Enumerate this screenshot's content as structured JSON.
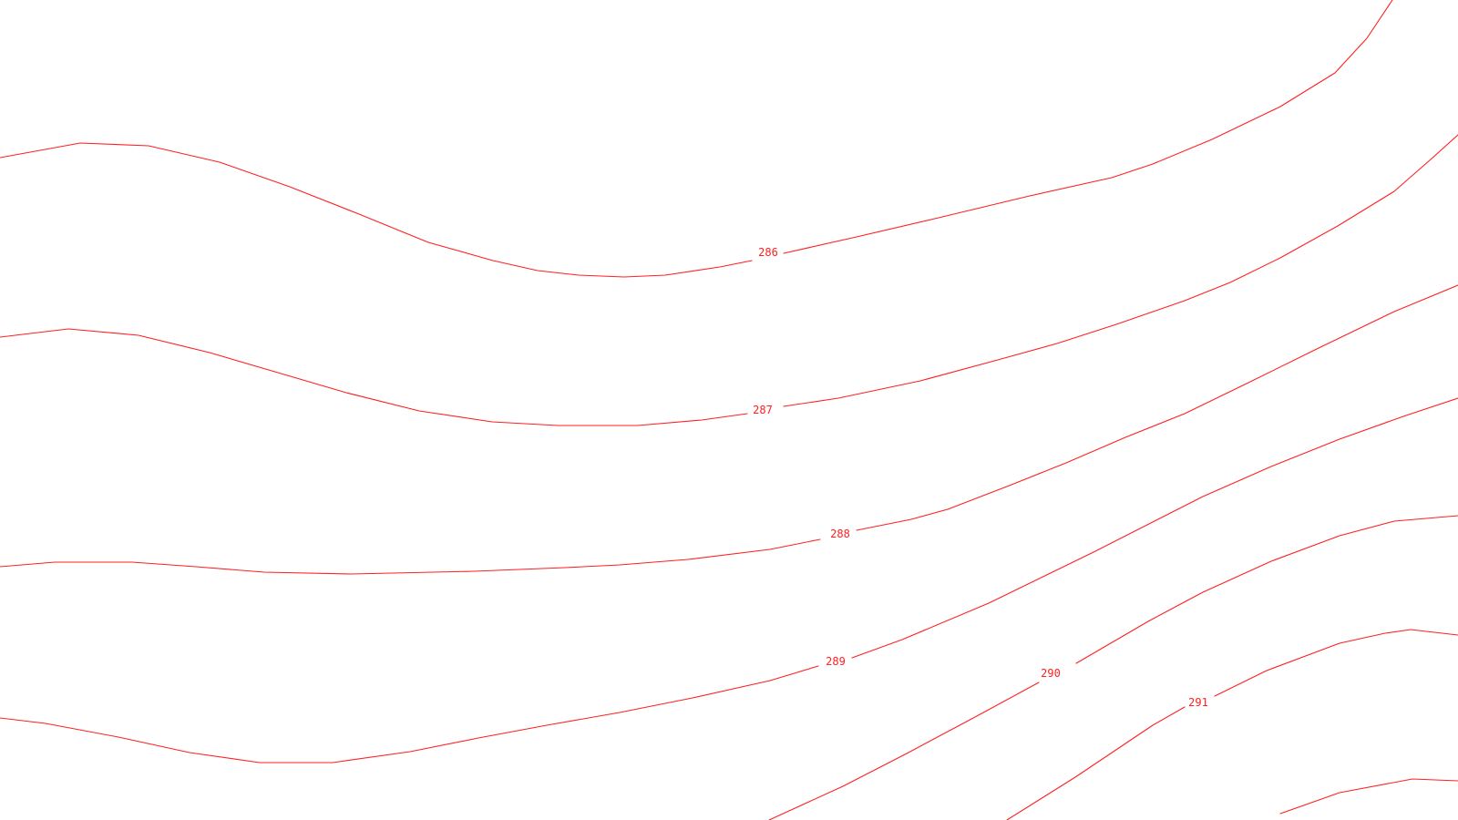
{
  "map": {
    "line_color": "#ff2020",
    "background_color": "#ffffff",
    "contours": [
      {
        "value": 286,
        "label": "286"
      },
      {
        "value": 287,
        "label": "287"
      },
      {
        "value": 288,
        "label": "288"
      },
      {
        "value": 289,
        "label": "289"
      },
      {
        "value": 290,
        "label": "290"
      },
      {
        "value": 291,
        "label": "291"
      },
      {
        "value": null,
        "label": ""
      },
      {
        "value": null,
        "label": ""
      }
    ]
  }
}
